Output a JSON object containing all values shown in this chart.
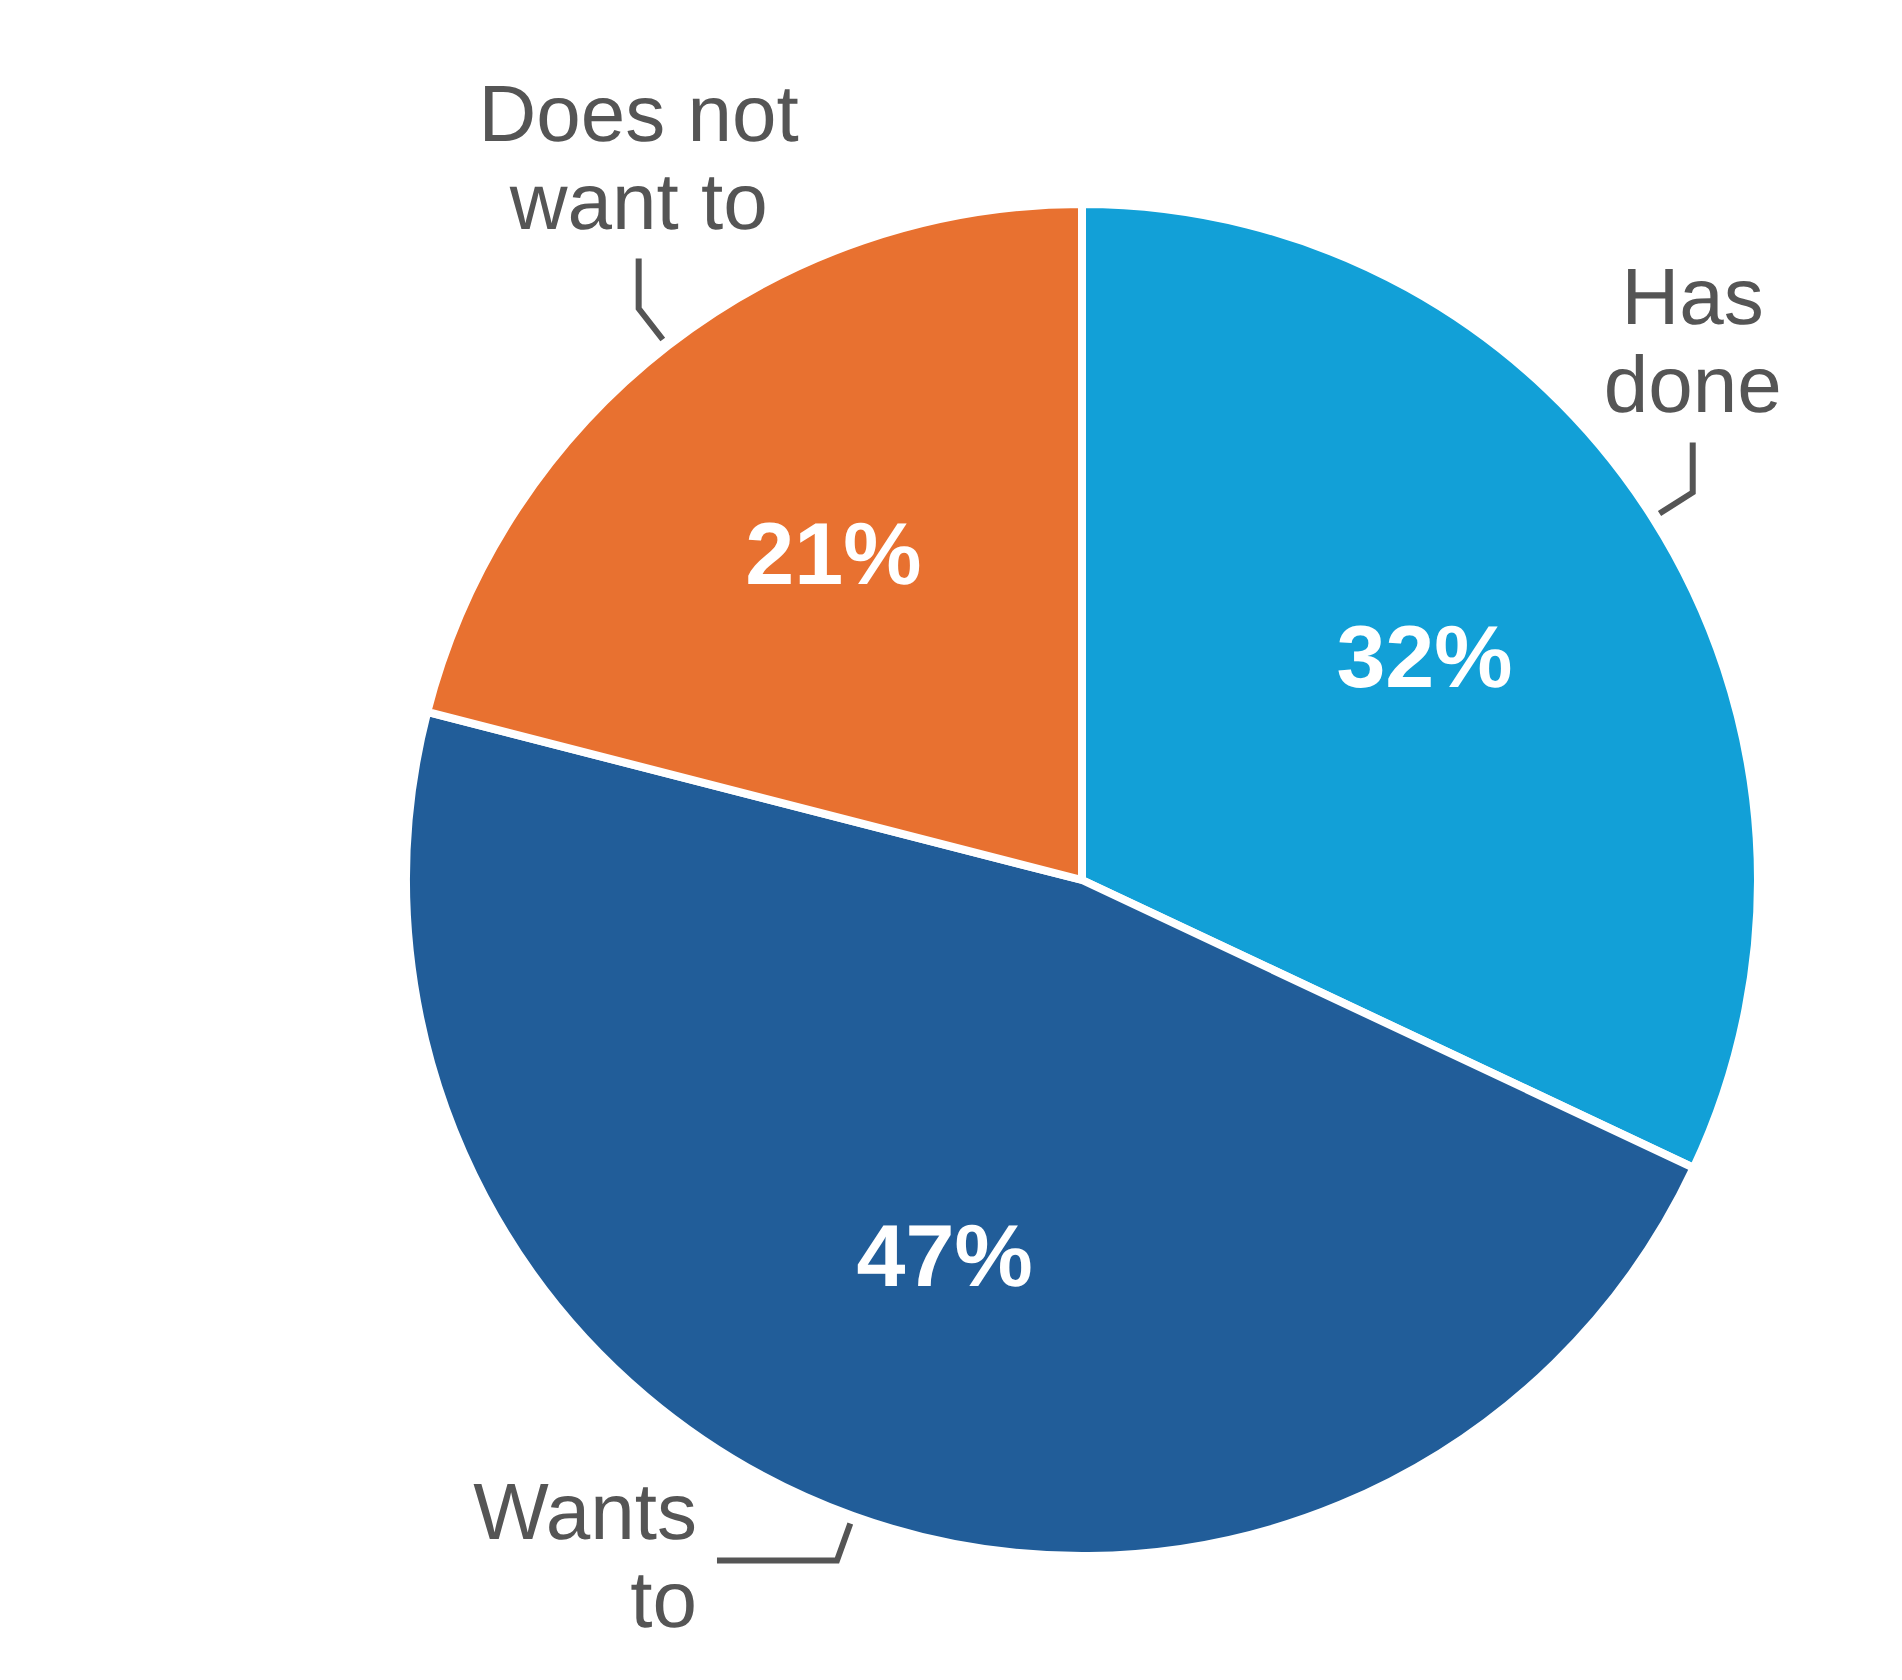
{
  "chart_data": {
    "type": "pie",
    "categories": [
      "Has done",
      "Wants to",
      "Does not want to"
    ],
    "values": [
      32,
      47,
      21
    ],
    "colors": [
      "#12a0d7",
      "#215d99",
      "#e87130"
    ],
    "value_labels": [
      "32%",
      "47%",
      "21%"
    ],
    "legend": false
  }
}
